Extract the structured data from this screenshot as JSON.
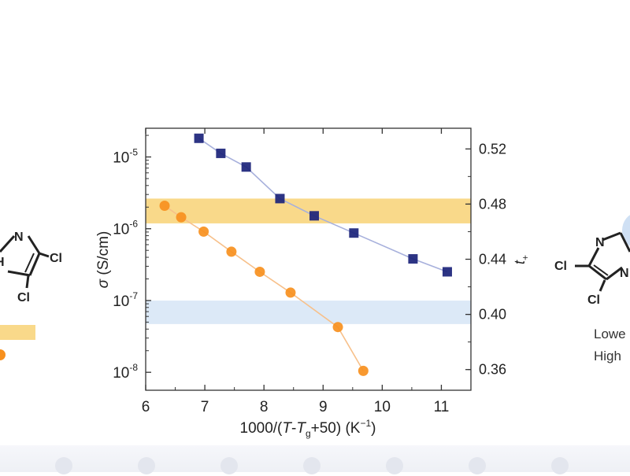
{
  "chart_data": {
    "type": "scatter",
    "x_axis": {
      "label_prefix": "1000/(",
      "label_T": "T",
      "label_minus": "-",
      "label_Tg_base": "T",
      "label_Tg_sub": "g",
      "label_suffix": "+50) (K",
      "label_exp": "−1",
      "label_close": ")",
      "range": [
        6,
        11.5
      ],
      "ticks": [
        6,
        7,
        8,
        9,
        10,
        11
      ],
      "tick_labels": [
        "6",
        "7",
        "8",
        "9",
        "10",
        "11"
      ]
    },
    "y_left_axis": {
      "label_symbol": "σ",
      "label_unit": " (S/cm)",
      "scale": "log",
      "range_log10": [
        -8.25,
        -4.6
      ],
      "ticks_log10": [
        -5,
        -6,
        -7,
        -8
      ],
      "tick_base": "10",
      "tick_exponents": [
        "-5",
        "-6",
        "-7",
        "-8"
      ]
    },
    "y_right_axis": {
      "label_base": "t",
      "label_sub": "+",
      "range": [
        0.345,
        0.535
      ],
      "ticks": [
        0.52,
        0.48,
        0.44,
        0.4,
        0.36
      ],
      "tick_labels": [
        "0.52",
        "0.48",
        "0.44",
        "0.40",
        "0.36"
      ]
    },
    "bands": [
      {
        "axis": "right",
        "from": 0.466,
        "to": 0.484,
        "color": "#f9d98a"
      },
      {
        "axis": "right",
        "from": 0.393,
        "to": 0.41,
        "color": "#dce9f7"
      }
    ],
    "series": [
      {
        "marker": "square",
        "color": "#1b237a",
        "line_color": "#a7b0dc",
        "axis": "left",
        "x": [
          6.9,
          7.27,
          7.7,
          8.27,
          8.85,
          9.52,
          10.52,
          11.1
        ],
        "log10_y": [
          -4.74,
          -4.95,
          -5.14,
          -5.58,
          -5.82,
          -6.06,
          -6.42,
          -6.6
        ]
      },
      {
        "marker": "circle",
        "color": "#f7901e",
        "line_color": "#f7c08a",
        "axis": "left",
        "x": [
          6.32,
          6.6,
          6.98,
          7.45,
          7.93,
          8.45,
          9.25,
          9.68
        ],
        "log10_y": [
          -5.68,
          -5.84,
          -6.04,
          -6.32,
          -6.6,
          -6.89,
          -7.37,
          -7.98
        ]
      }
    ],
    "grid": false,
    "legend": "none"
  },
  "left_fragment": {
    "label_n": "N",
    "label_cl1": "Cl",
    "label_cl2": "Cl",
    "label_h": "H",
    "bar_color": "#f9d98a",
    "dot_color": "#f7901e"
  },
  "right_fragment": {
    "label_n1": "N",
    "label_n2": "N",
    "label_cl1": "Cl",
    "label_cl2": "Cl",
    "caption_line1": "Lowe",
    "caption_line2": "High",
    "bubble_color": "#cfe0f4"
  }
}
